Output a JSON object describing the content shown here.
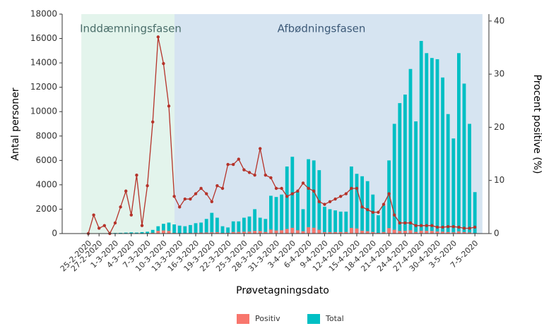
{
  "chart_data": {
    "type": "bar",
    "xlabel": "Prøvetagningsdato",
    "ylabel": "Antal personer",
    "y2label": "Procent positive (%)",
    "annotations": [
      "Inddæmningsfasen",
      "Afbødningsfasen"
    ],
    "categories": [
      "25-2-2020",
      null,
      "27-2-2020",
      null,
      null,
      "1-3-2020",
      null,
      null,
      "4-3-2020",
      null,
      null,
      "7-3-2020",
      null,
      null,
      "10-3-2020",
      null,
      null,
      "13-3-2020",
      null,
      null,
      "16-3-2020",
      null,
      null,
      "19-3-2020",
      null,
      null,
      "22-3-2020",
      null,
      null,
      "25-3-2020",
      null,
      null,
      "28-3-2020",
      null,
      null,
      "31-3-2020",
      null,
      null,
      "3-4-2020",
      null,
      null,
      "6-4-2020",
      null,
      null,
      "9-4-2020",
      null,
      null,
      "12-4-2020",
      null,
      null,
      "15-4-2020",
      null,
      null,
      "18-4-2020",
      null,
      null,
      "21-4-2020",
      null,
      null,
      "24-4-2020",
      null,
      null,
      "27-4-2020",
      null,
      null,
      "30-4-2020",
      null,
      null,
      "3-5-2020",
      null,
      null,
      null,
      "7-5-2020"
    ],
    "series": [
      {
        "name": "Total",
        "color": "#00bfc4",
        "values": [
          10,
          20,
          30,
          30,
          40,
          50,
          60,
          80,
          100,
          80,
          120,
          150,
          300,
          600,
          800,
          900,
          750,
          650,
          600,
          700,
          850,
          900,
          1200,
          1700,
          1300,
          600,
          500,
          1000,
          1000,
          1300,
          1400,
          2000,
          1300,
          1200,
          3100,
          3000,
          3200,
          5500,
          6300,
          3400,
          2000,
          6100,
          6000,
          5200,
          2200,
          2000,
          1900,
          1800,
          1800,
          5500,
          4900,
          4700,
          4300,
          3200,
          1500,
          2300,
          6000,
          9000,
          10700,
          11400,
          13500,
          9200,
          15800,
          14800,
          14400,
          14300,
          12800,
          9800,
          7800,
          14800,
          12300,
          9000,
          3400
        ]
      },
      {
        "name": "Positiv",
        "color": "#f8766d",
        "values": [
          0,
          1,
          0,
          0,
          0,
          1,
          3,
          6,
          4,
          9,
          2,
          14,
          63,
          222,
          256,
          216,
          53,
          33,
          39,
          46,
          64,
          77,
          90,
          102,
          117,
          51,
          65,
          130,
          140,
          156,
          161,
          220,
          208,
          132,
          326,
          255,
          272,
          385,
          473,
          272,
          190,
          519,
          480,
          312,
          121,
          120,
          124,
          126,
          135,
          468,
          417,
          235,
          194,
          128,
          60,
          127,
          450,
          315,
          214,
          228,
          270,
          138,
          237,
          222,
          216,
          172,
          154,
          127,
          101,
          178,
          123,
          90,
          41
        ]
      },
      {
        "type": "line",
        "axis": "y2",
        "color": "#b5332a",
        "values": [
          0,
          3.5,
          1,
          1.5,
          0,
          2,
          5,
          8,
          3.5,
          11,
          1.5,
          9,
          21,
          37,
          32,
          24,
          7,
          5,
          6.5,
          6.5,
          7.5,
          8.5,
          7.5,
          6,
          9,
          8.5,
          13,
          13,
          14,
          12,
          11.5,
          11,
          16,
          11,
          10.5,
          8.5,
          8.5,
          7,
          7.5,
          8,
          9.5,
          8.5,
          8,
          6,
          5.5,
          6,
          6.5,
          7,
          7.5,
          8.5,
          8.5,
          5,
          4.5,
          4,
          4,
          5.5,
          7.5,
          3.5,
          2,
          2,
          2,
          1.5,
          1.5,
          1.5,
          1.5,
          1.2,
          1.2,
          1.3,
          1.3,
          1.2,
          1,
          1,
          1.2
        ]
      }
    ],
    "legend_order": [
      1,
      0
    ],
    "ylim": [
      0,
      18000
    ],
    "yticks": [
      0,
      2000,
      4000,
      6000,
      8000,
      10000,
      12000,
      14000,
      16000,
      18000
    ],
    "y2lim": [
      0,
      41.3
    ],
    "y2ticks": [
      0,
      10,
      20,
      30,
      40
    ]
  }
}
